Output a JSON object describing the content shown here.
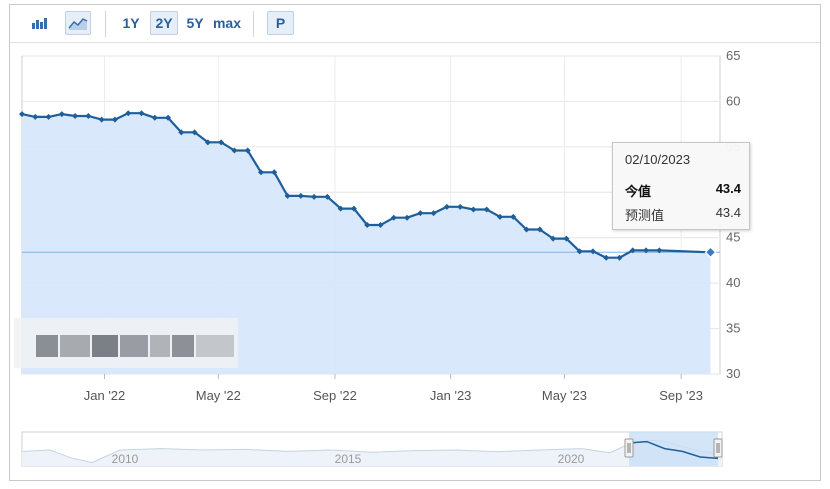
{
  "toolbar": {
    "bar_icon": "bar-chart-icon",
    "line_icon": "line-chart-icon",
    "ranges": [
      "1Y",
      "2Y",
      "5Y",
      "max"
    ],
    "active_range": "2Y",
    "p_label": "P"
  },
  "tooltip": {
    "date": "02/10/2023",
    "current_label": "今值",
    "current_value": "43.4",
    "forecast_label": "预测值",
    "forecast_value": "43.4"
  },
  "colors": {
    "line": "#1f5f99",
    "area": "#d7e8fb",
    "plotline": "#7fb2e5",
    "navigator_fill": "#c9dff6"
  },
  "chart_data": {
    "type": "area",
    "title": "",
    "xlabel": "",
    "ylabel": "",
    "ylim": [
      30,
      65
    ],
    "y_ticks": [
      30,
      35,
      40,
      45,
      50,
      55,
      60,
      65
    ],
    "x_tick_labels": [
      "Jan '22",
      "May '22",
      "Sep '22",
      "Jan '23",
      "May '23",
      "Sep '23"
    ],
    "x_tick_dates": [
      "2022-01-01",
      "2022-05-01",
      "2022-09-01",
      "2023-01-01",
      "2023-05-01",
      "2023-09-01"
    ],
    "x_range": [
      "2021-10-06",
      "2023-10-12"
    ],
    "grid": true,
    "current_value_line": 43.4,
    "highlighted_point": {
      "date": "2023-10-02",
      "value": 43.4
    },
    "series": [
      {
        "points": [
          [
            "2021-10-06",
            58.6
          ],
          [
            "2021-10-20",
            58.3
          ],
          [
            "2021-11-03",
            58.3
          ],
          [
            "2021-11-17",
            58.6
          ],
          [
            "2021-12-01",
            58.4
          ],
          [
            "2021-12-15",
            58.4
          ],
          [
            "2021-12-29",
            58.0
          ],
          [
            "2022-01-12",
            58.0
          ],
          [
            "2022-01-26",
            58.7
          ],
          [
            "2022-02-09",
            58.7
          ],
          [
            "2022-02-23",
            58.2
          ],
          [
            "2022-03-09",
            58.2
          ],
          [
            "2022-03-23",
            56.6
          ],
          [
            "2022-04-06",
            56.6
          ],
          [
            "2022-04-20",
            55.5
          ],
          [
            "2022-05-04",
            55.5
          ],
          [
            "2022-05-18",
            54.6
          ],
          [
            "2022-06-01",
            54.6
          ],
          [
            "2022-06-15",
            52.2
          ],
          [
            "2022-06-29",
            52.2
          ],
          [
            "2022-07-13",
            49.6
          ],
          [
            "2022-07-27",
            49.6
          ],
          [
            "2022-08-10",
            49.5
          ],
          [
            "2022-08-24",
            49.5
          ],
          [
            "2022-09-07",
            48.2
          ],
          [
            "2022-09-21",
            48.2
          ],
          [
            "2022-10-05",
            46.4
          ],
          [
            "2022-10-19",
            46.4
          ],
          [
            "2022-11-02",
            47.2
          ],
          [
            "2022-11-16",
            47.2
          ],
          [
            "2022-11-30",
            47.7
          ],
          [
            "2022-12-14",
            47.7
          ],
          [
            "2022-12-28",
            48.4
          ],
          [
            "2023-01-11",
            48.4
          ],
          [
            "2023-01-25",
            48.1
          ],
          [
            "2023-02-08",
            48.1
          ],
          [
            "2023-02-22",
            47.3
          ],
          [
            "2023-03-08",
            47.3
          ],
          [
            "2023-03-22",
            45.9
          ],
          [
            "2023-04-05",
            45.9
          ],
          [
            "2023-04-19",
            44.9
          ],
          [
            "2023-05-03",
            44.9
          ],
          [
            "2023-05-17",
            43.5
          ],
          [
            "2023-05-31",
            43.5
          ],
          [
            "2023-06-14",
            42.8
          ],
          [
            "2023-06-28",
            42.8
          ],
          [
            "2023-07-12",
            43.6
          ],
          [
            "2023-07-26",
            43.6
          ],
          [
            "2023-08-09",
            43.6
          ],
          [
            "2023-10-02",
            43.4
          ]
        ]
      }
    ],
    "navigator": {
      "x_labels": [
        "2010",
        "2015",
        "2020"
      ]
    }
  }
}
